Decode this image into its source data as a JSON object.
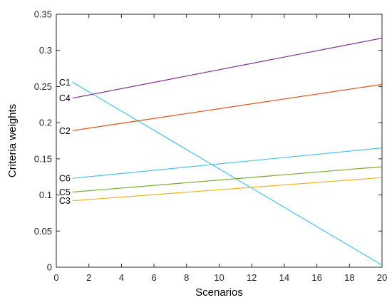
{
  "chart_data": {
    "type": "line",
    "title": "",
    "xlabel": "Scenarios",
    "ylabel": "Criteria weights",
    "xlim": [
      0,
      20
    ],
    "ylim": [
      0,
      0.35
    ],
    "xticks": [
      0,
      2,
      4,
      6,
      8,
      10,
      12,
      14,
      16,
      18,
      20
    ],
    "yticks": [
      0,
      0.05,
      0.1,
      0.15,
      0.2,
      0.25,
      0.3,
      0.35
    ],
    "xtick_labels": [
      "0",
      "2",
      "4",
      "6",
      "8",
      "10",
      "12",
      "14",
      "16",
      "18",
      "20"
    ],
    "ytick_labels": [
      "0",
      "0.05",
      "0.1",
      "0.15",
      "0.2",
      "0.25",
      "0.3",
      "0.35"
    ],
    "grid": false,
    "x": [
      1,
      20
    ],
    "series": [
      {
        "name": "C1",
        "color": "#4DBEEE",
        "values": [
          0.256,
          0.003
        ]
      },
      {
        "name": "C2",
        "color": "#D95319",
        "values": [
          0.189,
          0.253
        ]
      },
      {
        "name": "C3",
        "color": "#EDB120",
        "values": [
          0.092,
          0.124
        ]
      },
      {
        "name": "C4",
        "color": "#7E2F8E",
        "values": [
          0.234,
          0.317
        ]
      },
      {
        "name": "C5",
        "color": "#77AC30",
        "values": [
          0.104,
          0.139
        ]
      },
      {
        "name": "C6",
        "color": "#4DBEEE",
        "values": [
          0.123,
          0.165
        ]
      }
    ]
  }
}
